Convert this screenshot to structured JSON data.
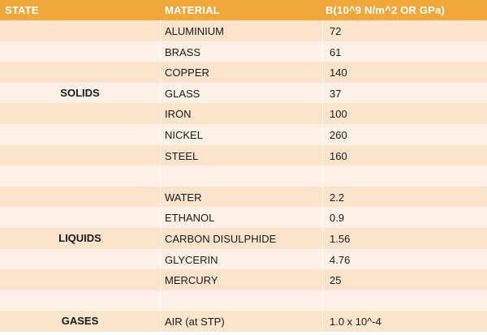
{
  "headers": {
    "state": "STATE",
    "material": "MATERIAL",
    "bulk": "B(10^9 N/m^2 OR GPa)"
  },
  "groups": [
    {
      "state": "SOLIDS",
      "rows": [
        {
          "material": "ALUMINIUM",
          "value": "72"
        },
        {
          "material": "BRASS",
          "value": "61"
        },
        {
          "material": "COPPER",
          "value": "140"
        },
        {
          "material": "GLASS",
          "value": "37"
        },
        {
          "material": "IRON",
          "value": "100"
        },
        {
          "material": "NICKEL",
          "value": "260"
        },
        {
          "material": "STEEL",
          "value": "160"
        }
      ]
    },
    {
      "state": "LIQUIDS",
      "rows": [
        {
          "material": "WATER",
          "value": "2.2"
        },
        {
          "material": "ETHANOL",
          "value": "0.9"
        },
        {
          "material": "CARBON DISULPHIDE",
          "value": "1.56"
        },
        {
          "material": "GLYCERIN",
          "value": "4.76"
        },
        {
          "material": "MERCURY",
          "value": "25"
        }
      ]
    },
    {
      "state": "GASES",
      "rows": [
        {
          "material": "AIR (at STP)",
          "value": "1.0 x 10^-4"
        }
      ]
    }
  ],
  "colors": {
    "header": "#f1a83b",
    "band_dark": "#fbe3cc",
    "band_light": "#fdf1e6"
  }
}
